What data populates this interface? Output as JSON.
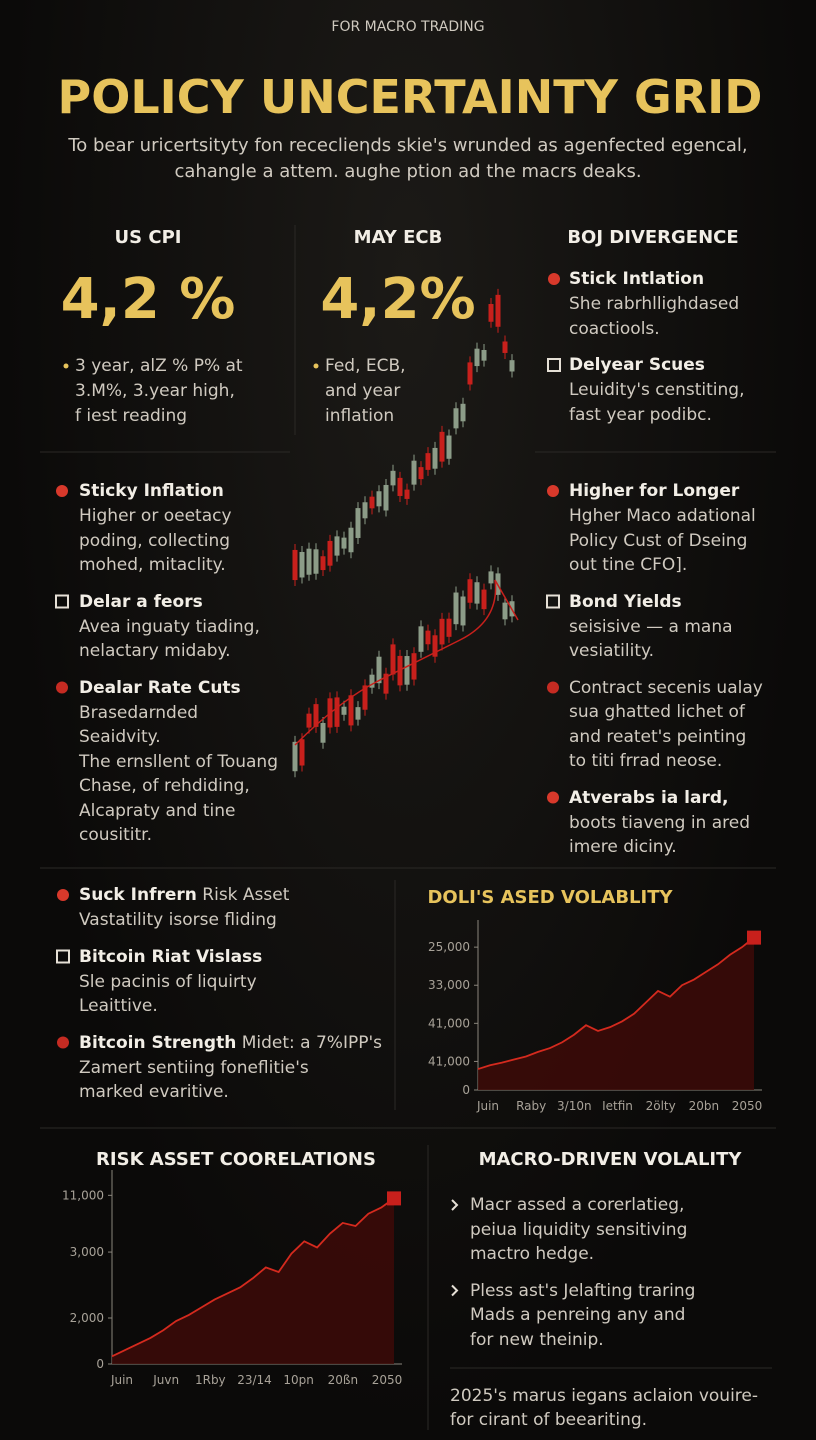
{
  "header": {
    "kicker": "FOR MACRO TRADING",
    "title": "POLICY UNCERTAINTY GRID",
    "subtitle": [
      "To bear uricertsityty fon receclieηds skie's wrunded as agenfected egencal,",
      "cahangle a attem. aughe ption ad the macrs deaks."
    ]
  },
  "stats": [
    {
      "label": "US CPI",
      "value": "4,2 %",
      "bullets": [
        "3 year, alZ % P% at",
        "3.M%, 3.year high,",
        "f iest reading"
      ]
    },
    {
      "label": "MAY ECB",
      "value": "4,2%",
      "bullets": [
        "Fed, ECB,",
        "and year",
        "inflation"
      ]
    }
  ],
  "boj": {
    "title": "BOJ DIVERGENCE",
    "items": [
      {
        "title": "Stick Intlation",
        "lines": [
          "She rabrhllighdased",
          "coactiools."
        ]
      },
      {
        "title": "Delyear Scues",
        "lines": [
          "Leuidity's censtiting,",
          "fast year podibc."
        ]
      }
    ]
  },
  "left_items": [
    {
      "title": "Sticky Inflation",
      "lines": [
        "Higher or oeetacy",
        "poding, collecting",
        "mohed, mitaclity."
      ]
    },
    {
      "title": "Delar a feors",
      "lines": [
        "Avea inguaty tiading,",
        "nelactary midaby."
      ]
    },
    {
      "title": "Dealar Rate Cuts",
      "lines": [
        "Brasedarnded",
        "Seaidvity.",
        "The ernsllent of Touang",
        "Chase, of rehdiding,",
        "Alcapraty and tine",
        "cousititr."
      ]
    }
  ],
  "right_items": [
    {
      "title": "Higher for Longer",
      "lines": [
        "Hgher Maco adational",
        "Policy Cust of Dseing",
        "out tine CFO]."
      ]
    },
    {
      "title": "Bond Yields",
      "lines": [
        "seisisive — a mana",
        "vesiatility."
      ]
    },
    {
      "lines": [
        "Contract secenis ualay",
        "sua ghatted lichet of",
        "and reatet's peinting",
        "to titi frrad neose."
      ]
    },
    {
      "title": "Atverabs ia lard,",
      "lines": [
        "boots tiaveng in ared",
        "imere diciny."
      ]
    }
  ],
  "risk_items": [
    {
      "title": "Suck Infrern",
      "title_rest": " Risk Asset",
      "lines": [
        "Vastatility isorse fliding"
      ]
    },
    {
      "title": "Bitcoin Riat Vislass",
      "lines": [
        "Sle pacinis of liquirty",
        "Leaittive."
      ]
    },
    {
      "title": "Bitcoin Strength",
      "title_rest": " Midet: a 7%IPP's",
      "lines": [
        "Zamert sentiing foneflitie's",
        "marked evaritive."
      ]
    }
  ],
  "charts": [
    {
      "type": "area",
      "title": "DOLI'S ASED VOLABLITY",
      "categories": [
        "Juin",
        "Raby",
        "3/10n",
        "Ietfin",
        "2ölty",
        "20bn",
        "2050"
      ],
      "ylim": [
        0,
        42000
      ],
      "yticks": [
        0,
        {
          "value": 7500,
          "label": "41,000"
        },
        {
          "value": 17500,
          "label": "41,000"
        },
        {
          "value": 27500,
          "label": "33,000"
        },
        {
          "value": 37500,
          "label": "25,000"
        }
      ],
      "color": "#d42a1e",
      "values": [
        5500,
        6500,
        7200,
        8000,
        8800,
        10000,
        11000,
        12500,
        14500,
        17000,
        15500,
        16500,
        18000,
        20000,
        23000,
        26000,
        24500,
        27500,
        29000,
        31000,
        33000,
        35500,
        37500,
        40000
      ]
    },
    {
      "type": "area",
      "title": "RISK ASSET COORELATIONS",
      "categories": [
        "Juin",
        "Juvn",
        "1Rby",
        "23/14",
        "10pn",
        "20ßn",
        "2050"
      ],
      "ylim": [
        0,
        12000
      ],
      "yticks": [
        0,
        {
          "value": 3000,
          "label": "2,000"
        },
        {
          "value": 7300,
          "label": "3,000"
        },
        {
          "value": 11000,
          "label": "11,000"
        }
      ],
      "color": "#d42a1e",
      "values": [
        500,
        900,
        1300,
        1700,
        2200,
        2800,
        3200,
        3700,
        4200,
        4600,
        5000,
        5600,
        6300,
        6000,
        7200,
        8000,
        7600,
        8500,
        9200,
        9000,
        9800,
        10200,
        10800
      ]
    }
  ],
  "macro": {
    "title": "MACRO-DRIVEN VOLALITY",
    "items": [
      {
        "lines": [
          "Macr assed a corerlatieg,",
          "peiua liquidity sensitiving",
          "mactro hedge."
        ]
      },
      {
        "lines": [
          "Pless ast's Jelafting traring",
          "Mads a penreing any and",
          "for new theinip."
        ]
      }
    ],
    "footnote": [
      "2025's marus iegans aclaion vouire-",
      "for cirant of beeariting."
    ]
  }
}
